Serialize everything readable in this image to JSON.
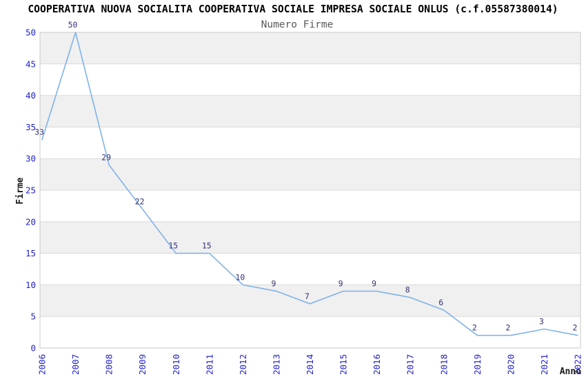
{
  "header": {
    "title": "COOPERATIVA NUOVA SOCIALITA COOPERATIVA SOCIALE IMPRESA SOCIALE ONLUS (c.f.05587380014)",
    "subtitle": "Numero Firme"
  },
  "chart_data": {
    "type": "line",
    "title": "Numero Firme",
    "xlabel": "Anno",
    "ylabel": "Firme",
    "x": [
      2006,
      2007,
      2008,
      2009,
      2010,
      2011,
      2012,
      2013,
      2014,
      2015,
      2016,
      2017,
      2018,
      2019,
      2020,
      2021,
      2022
    ],
    "values": [
      33,
      50,
      29,
      22,
      15,
      15,
      10,
      9,
      7,
      9,
      9,
      8,
      6,
      2,
      2,
      3,
      2
    ],
    "ylim": [
      0,
      50
    ],
    "ytick_step": 5,
    "yticks": [
      0,
      5,
      10,
      15,
      20,
      25,
      30,
      35,
      40,
      45,
      50
    ],
    "point_labels_visible": true,
    "legend": "none",
    "grid": "horizontal-bands-alternating",
    "x_tick_rotation_deg": -90,
    "colors": {
      "line": "#7fb2e8",
      "tick_label": "#2222cc",
      "point_label": "#333377",
      "band": "#f0f0f0",
      "gridline": "#d9d9d9",
      "border": "#c9c9c9",
      "title": "#000000",
      "subtitle": "#595959",
      "axis_title": "#1a1a1a",
      "background": "#ffffff"
    }
  }
}
